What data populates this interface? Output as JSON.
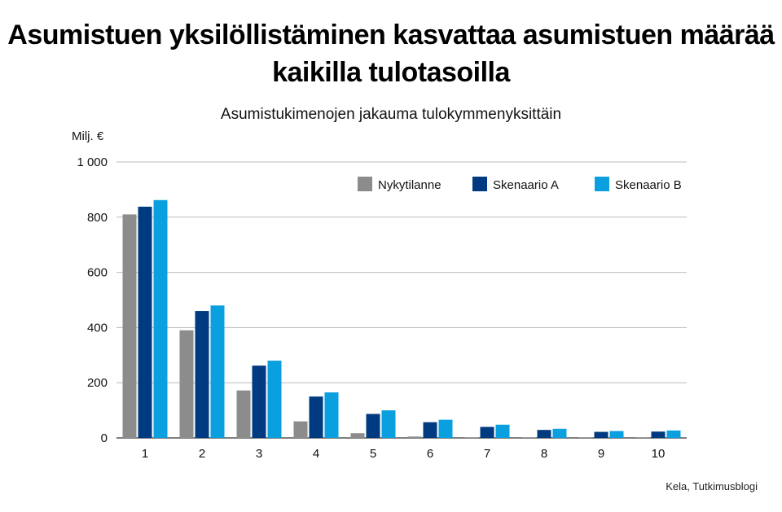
{
  "title_line1": "Asumistuen yksilöllistäminen kasvattaa asumistuen määrää",
  "title_line2": "kaikilla tulotasoilla",
  "source": "Kela, Tutkimusblogi",
  "colors": {
    "Nykytilanne": "#8c8c8c",
    "Skenaario A": "#003a80",
    "Skenaario B": "#0aa0e0",
    "grid": "#bbbbbb",
    "axis": "#333333"
  },
  "chart_data": {
    "type": "bar",
    "title": "Asumistukimenojen jakauma tulokymmenyksittäin",
    "ylabel": "Milj. €",
    "xlabel": "",
    "ylim": [
      0,
      1000
    ],
    "yticks": [
      0,
      200,
      400,
      600,
      800,
      1000
    ],
    "ytick_labels": [
      "0",
      "200",
      "400",
      "600",
      "800",
      "1 000"
    ],
    "grid": true,
    "legend_position": "top-right",
    "categories": [
      "1",
      "2",
      "3",
      "4",
      "5",
      "6",
      "7",
      "8",
      "9",
      "10"
    ],
    "series": [
      {
        "name": "Nykytilanne",
        "values": [
          810,
          390,
          172,
          60,
          17,
          5,
          2,
          1,
          1,
          1
        ]
      },
      {
        "name": "Skenaario A",
        "values": [
          838,
          460,
          262,
          150,
          87,
          57,
          40,
          29,
          22,
          23
        ]
      },
      {
        "name": "Skenaario B",
        "values": [
          862,
          480,
          280,
          165,
          100,
          66,
          48,
          33,
          25,
          27
        ]
      }
    ]
  }
}
